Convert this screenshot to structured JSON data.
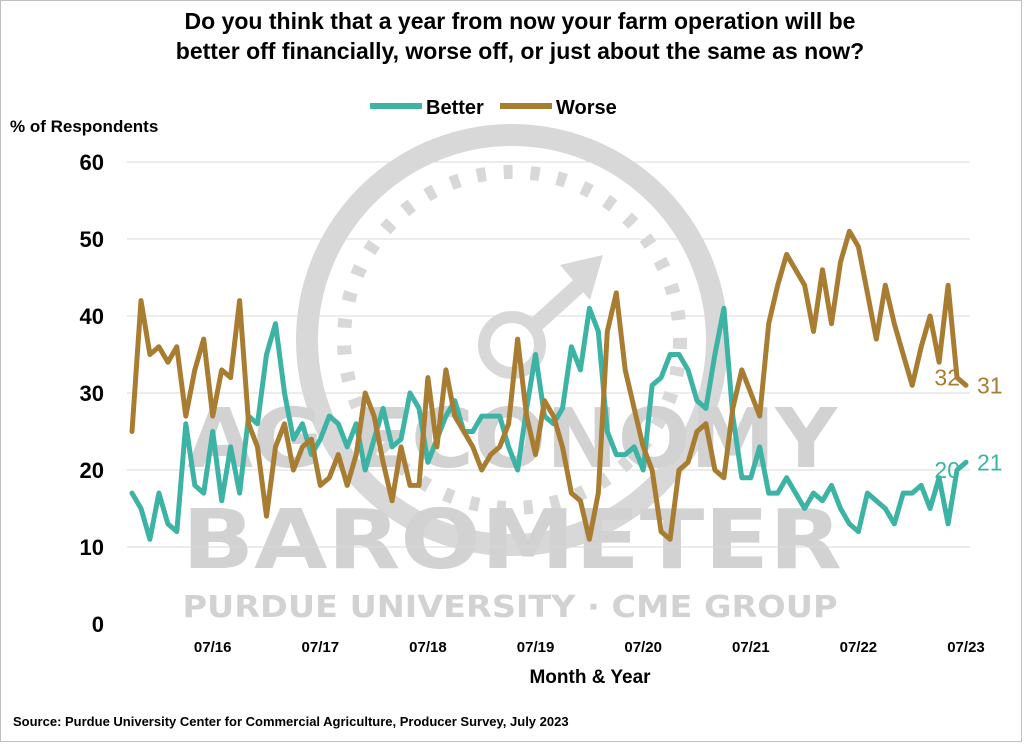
{
  "title_line1": "Do you think that a year from now your farm operation will be",
  "title_line2": "better off financially, worse off, or just about the same as now?",
  "source": "Source: Purdue University Center for Commercial Agriculture, Producer Survey, July 2023",
  "watermark": {
    "line1": "AG ECONOMY",
    "line2": "BAROMETER",
    "line3": "PURDUE UNIVERSITY · CME GROUP"
  },
  "colors": {
    "better": "#3cb3a5",
    "worse": "#a87d32",
    "grid": "#d9d9d9"
  },
  "chart_data": {
    "type": "line",
    "ylabel": "% of Respondents",
    "xlabel": "Month & Year",
    "ylim": [
      0,
      60
    ],
    "yticks": [
      0,
      10,
      20,
      30,
      40,
      50,
      60
    ],
    "xticks": [
      "07/16",
      "07/17",
      "07/18",
      "07/19",
      "07/20",
      "07/21",
      "07/22",
      "07/23"
    ],
    "x_start": "2015-10",
    "x_end": "2023-07",
    "legend": [
      "Better",
      "Worse"
    ],
    "legend_position": "top",
    "series": [
      {
        "name": "Better",
        "end_label": "21",
        "end_label2": "20",
        "values": [
          17,
          15,
          11,
          17,
          13,
          12,
          26,
          18,
          17,
          25,
          16,
          23,
          17,
          27,
          26,
          35,
          39,
          30,
          24,
          26,
          22,
          24,
          27,
          26,
          23,
          26,
          20,
          24,
          28,
          23,
          24,
          30,
          28,
          21,
          24,
          27,
          29,
          25,
          25,
          27,
          27,
          27,
          23,
          20,
          28,
          35,
          27,
          26,
          28,
          36,
          33,
          41,
          38,
          25,
          22,
          22,
          23,
          20,
          31,
          32,
          35,
          35,
          33,
          29,
          28,
          35,
          41,
          27,
          19,
          19,
          23,
          17,
          17,
          19,
          17,
          15,
          17,
          16,
          18,
          15,
          13,
          12,
          17,
          16,
          15,
          13,
          17,
          17,
          18,
          15,
          19,
          13,
          20,
          21
        ]
      },
      {
        "name": "Worse",
        "end_label": "31",
        "end_label2": "32",
        "values": [
          25,
          42,
          35,
          36,
          34,
          36,
          27,
          33,
          37,
          27,
          33,
          32,
          42,
          26,
          23,
          14,
          23,
          26,
          20,
          23,
          24,
          18,
          19,
          22,
          18,
          22,
          30,
          27,
          21,
          16,
          23,
          18,
          18,
          32,
          23,
          33,
          27,
          25,
          23,
          20,
          22,
          23,
          26,
          37,
          27,
          22,
          29,
          27,
          23,
          17,
          16,
          11,
          17,
          38,
          43,
          33,
          28,
          23,
          20,
          12,
          11,
          20,
          21,
          25,
          26,
          20,
          19,
          28,
          33,
          30,
          27,
          39,
          44,
          48,
          46,
          44,
          38,
          46,
          39,
          47,
          51,
          49,
          43,
          37,
          44,
          39,
          35,
          31,
          36,
          40,
          34,
          44,
          32,
          31
        ]
      }
    ]
  }
}
